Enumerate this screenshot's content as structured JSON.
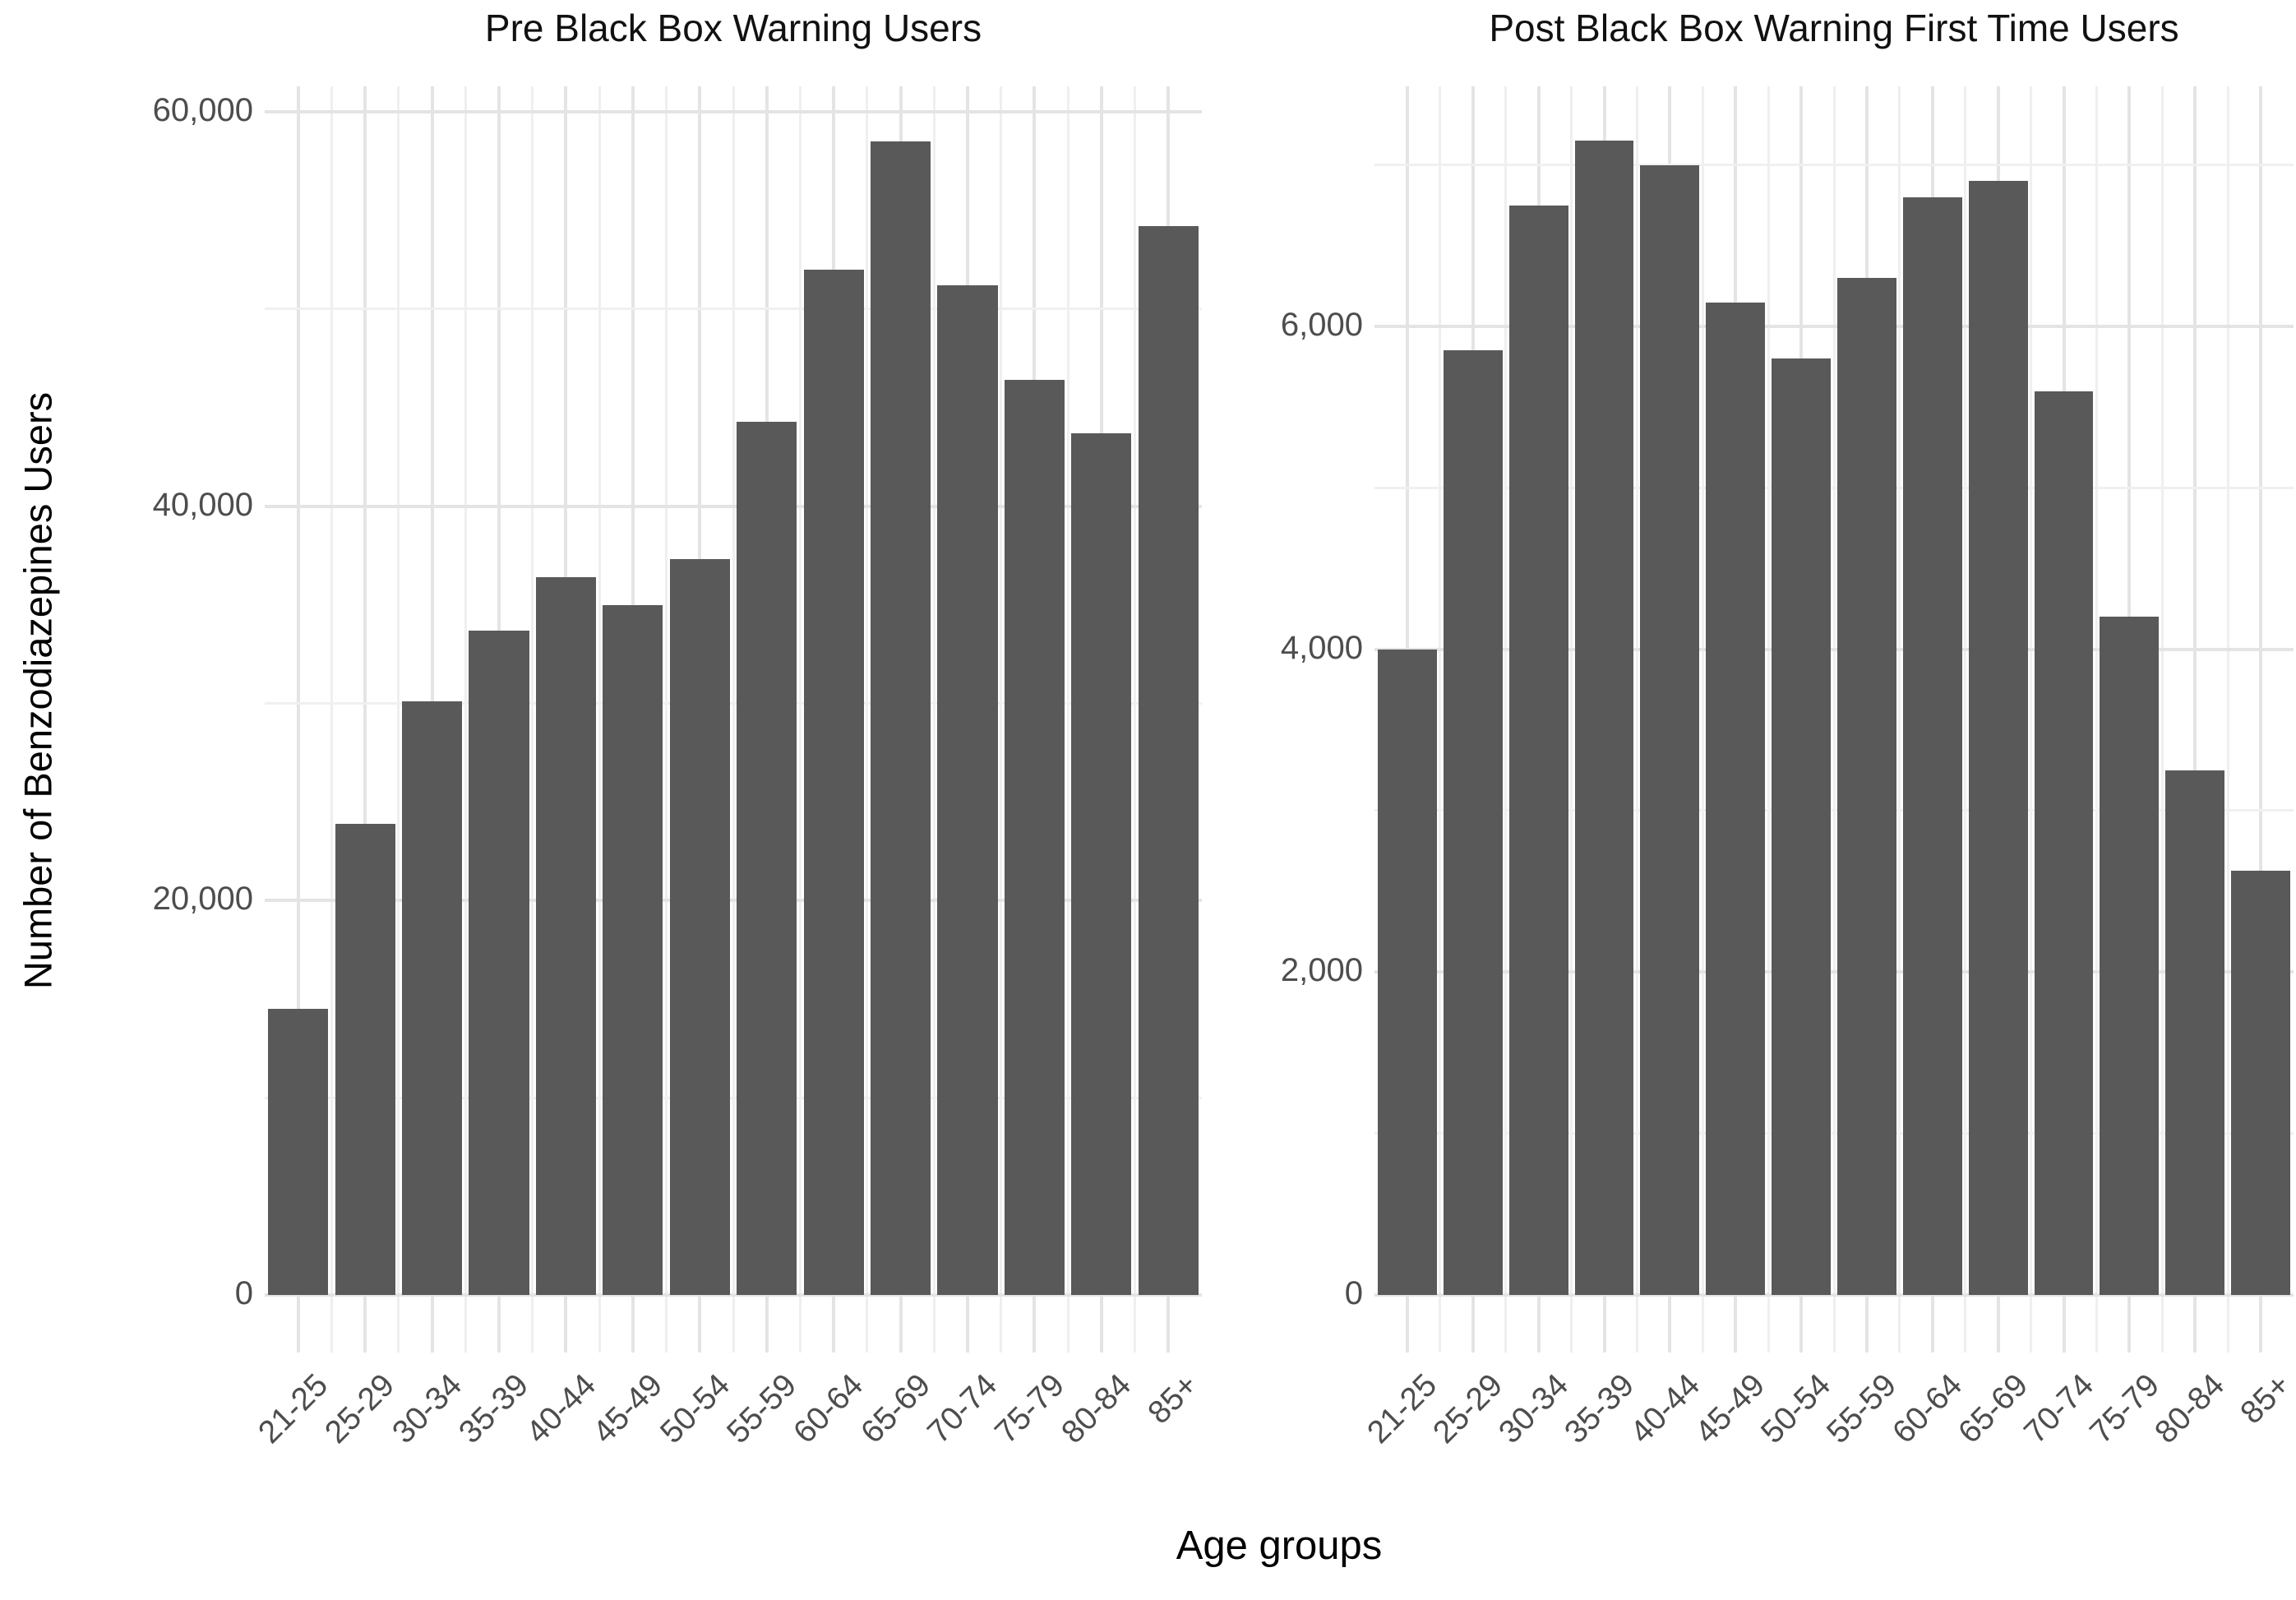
{
  "figure": {
    "x_axis_title": "Age groups",
    "y_axis_title": "Number of Benzodiazepines Users",
    "colors": {
      "bar_fill": "#595959",
      "grid_major": "#e4e4e4",
      "grid_minor": "#f0f0f0",
      "tick_label": "#4d4d4d",
      "title_text": "#111111",
      "background": "#ffffff"
    }
  },
  "chart_data": [
    {
      "type": "bar",
      "title": "Pre Black Box Warning Users",
      "xlabel": "Age groups",
      "ylabel": "Number of Benzodiazepines Users",
      "categories": [
        "21-25",
        "25-29",
        "30-34",
        "35-39",
        "40-44",
        "45-49",
        "50-54",
        "55-59",
        "60-64",
        "65-69",
        "70-74",
        "75-79",
        "80-84",
        "85+"
      ],
      "values": [
        14500,
        23900,
        30100,
        33700,
        36400,
        35000,
        37300,
        44300,
        52000,
        58500,
        51200,
        46400,
        43700,
        54200
      ],
      "ylim": [
        0,
        61290
      ],
      "yticks": [
        {
          "value": 0,
          "label": "0"
        },
        {
          "value": 20000,
          "label": "20,000"
        },
        {
          "value": 40000,
          "label": "40,000"
        },
        {
          "value": 60000,
          "label": "60,000"
        }
      ],
      "yminor": [
        10000,
        30000,
        50000
      ],
      "grid": "on",
      "legend": "none"
    },
    {
      "type": "bar",
      "title": "Post Black Box Warning First Time Users",
      "xlabel": "Age groups",
      "ylabel": "",
      "categories": [
        "21-25",
        "25-29",
        "30-34",
        "35-39",
        "40-44",
        "45-49",
        "50-54",
        "55-59",
        "60-64",
        "65-69",
        "70-74",
        "75-79",
        "80-84",
        "85+"
      ],
      "values": [
        4000,
        5850,
        6750,
        7150,
        7000,
        6150,
        5800,
        6300,
        6800,
        6900,
        5600,
        4200,
        3250,
        2630
      ],
      "ylim": [
        0,
        7487
      ],
      "yticks": [
        {
          "value": 0,
          "label": "0"
        },
        {
          "value": 2000,
          "label": "2,000"
        },
        {
          "value": 4000,
          "label": "4,000"
        },
        {
          "value": 6000,
          "label": "6,000"
        }
      ],
      "yminor": [
        1000,
        3000,
        5000,
        7000
      ],
      "grid": "on",
      "legend": "none"
    }
  ]
}
